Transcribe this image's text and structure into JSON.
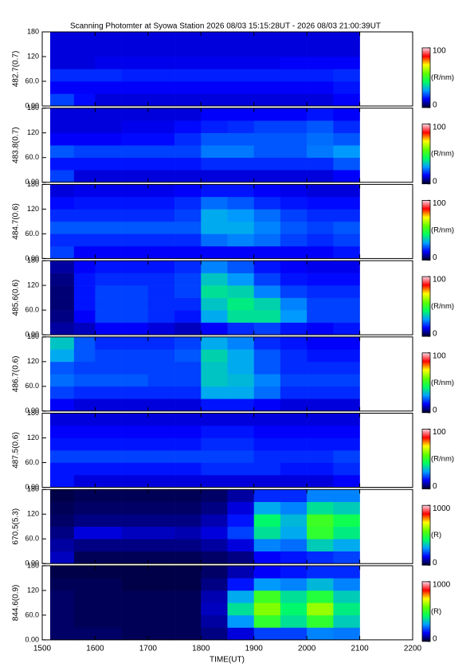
{
  "chart_data": {
    "type": "heatmap",
    "title": "Scanning Photomter at Syowa Station 2026 08/03 15:15:28UT - 2026 08/03 21:00:39UT",
    "xlabel": "TIME(UT)",
    "xlim": [
      1500,
      2200
    ],
    "xticks": [
      1500,
      1600,
      1700,
      1800,
      1900,
      2000,
      2100,
      2200
    ],
    "ylim": [
      0,
      180
    ],
    "yticks": [
      {
        "value": 0,
        "label": "0.00"
      },
      {
        "value": 60,
        "label": "60.0"
      },
      {
        "value": 120,
        "label": "120"
      },
      {
        "value": 180,
        "label": "180"
      }
    ],
    "x_bins": [
      1515,
      1560,
      1600,
      1650,
      1700,
      1750,
      1800,
      1850,
      1900,
      1950,
      2000,
      2050,
      2100
    ],
    "y_bins": [
      0,
      30,
      60,
      90,
      120,
      150,
      180
    ],
    "colormap": [
      "#00002a",
      "#0000ff",
      "#00a0ff",
      "#00ff60",
      "#60ff00",
      "#ffff00",
      "#ff0000",
      "#ffd8e8"
    ],
    "panels": [
      {
        "label": "482.7(0.7)",
        "unit": "(R/nm)",
        "clim": [
          0,
          100
        ],
        "cticks": [
          0,
          100
        ],
        "values": [
          [
            20,
            15,
            12,
            12,
            12,
            12,
            12,
            12,
            12,
            12,
            12,
            14
          ],
          [
            14,
            14,
            14,
            14,
            14,
            14,
            14,
            14,
            14,
            14,
            14,
            16
          ],
          [
            18,
            18,
            18,
            17,
            17,
            17,
            17,
            17,
            17,
            17,
            17,
            18
          ],
          [
            12,
            12,
            13,
            13,
            13,
            13,
            13,
            13,
            13,
            14,
            14,
            14
          ],
          [
            12,
            12,
            12,
            12,
            12,
            12,
            12,
            12,
            12,
            12,
            12,
            12
          ],
          [
            12,
            12,
            12,
            12,
            12,
            12,
            12,
            12,
            12,
            12,
            12,
            12
          ]
        ]
      },
      {
        "label": "483.8(0.7)",
        "unit": "(R/nm)",
        "clim": [
          0,
          100
        ],
        "cticks": [
          0,
          100
        ],
        "values": [
          [
            20,
            12,
            12,
            12,
            12,
            12,
            12,
            12,
            12,
            12,
            12,
            14
          ],
          [
            16,
            16,
            16,
            16,
            16,
            16,
            18,
            18,
            18,
            18,
            18,
            22
          ],
          [
            22,
            20,
            20,
            20,
            20,
            20,
            25,
            25,
            22,
            22,
            25,
            28
          ],
          [
            14,
            14,
            14,
            15,
            15,
            18,
            22,
            22,
            22,
            22,
            24,
            22
          ],
          [
            12,
            12,
            12,
            13,
            13,
            15,
            17,
            18,
            20,
            20,
            22,
            18
          ],
          [
            12,
            12,
            12,
            12,
            12,
            12,
            14,
            14,
            14,
            14,
            16,
            14
          ]
        ]
      },
      {
        "label": "484.7(0.6)",
        "unit": "(R/nm)",
        "clim": [
          0,
          100
        ],
        "cticks": [
          0,
          100
        ],
        "values": [
          [
            20,
            14,
            14,
            14,
            14,
            14,
            14,
            14,
            14,
            14,
            14,
            16
          ],
          [
            18,
            18,
            18,
            18,
            18,
            18,
            24,
            26,
            24,
            20,
            18,
            20
          ],
          [
            22,
            22,
            22,
            22,
            22,
            22,
            30,
            30,
            26,
            22,
            20,
            22
          ],
          [
            18,
            18,
            18,
            18,
            18,
            20,
            30,
            28,
            24,
            20,
            18,
            18
          ],
          [
            15,
            16,
            16,
            16,
            16,
            18,
            24,
            22,
            18,
            16,
            15,
            15
          ],
          [
            12,
            13,
            13,
            13,
            13,
            14,
            16,
            16,
            14,
            13,
            12,
            12
          ]
        ]
      },
      {
        "label": "485.6(0.6)",
        "unit": "(R/nm)",
        "clim": [
          0,
          100
        ],
        "cticks": [
          0,
          100
        ],
        "values": [
          [
            8,
            10,
            14,
            14,
            12,
            10,
            14,
            18,
            20,
            16,
            14,
            16
          ],
          [
            6,
            14,
            20,
            20,
            18,
            16,
            30,
            38,
            38,
            28,
            20,
            20
          ],
          [
            5,
            16,
            20,
            20,
            18,
            18,
            34,
            40,
            36,
            26,
            20,
            20
          ],
          [
            5,
            16,
            20,
            20,
            18,
            20,
            38,
            36,
            26,
            20,
            18,
            18
          ],
          [
            6,
            16,
            18,
            18,
            18,
            20,
            34,
            28,
            20,
            16,
            15,
            15
          ],
          [
            8,
            14,
            16,
            16,
            16,
            18,
            26,
            22,
            16,
            14,
            13,
            13
          ]
        ]
      },
      {
        "label": "486.7(0.6)",
        "unit": "(R/nm)",
        "clim": [
          0,
          100
        ],
        "cticks": [
          0,
          100
        ],
        "values": [
          [
            14,
            12,
            12,
            12,
            12,
            12,
            16,
            16,
            14,
            12,
            12,
            12
          ],
          [
            20,
            18,
            18,
            18,
            18,
            18,
            30,
            30,
            24,
            18,
            18,
            18
          ],
          [
            24,
            22,
            22,
            22,
            20,
            20,
            34,
            32,
            26,
            20,
            20,
            20
          ],
          [
            22,
            20,
            20,
            20,
            20,
            20,
            34,
            30,
            22,
            18,
            18,
            18
          ],
          [
            30,
            22,
            20,
            20,
            20,
            22,
            36,
            30,
            22,
            18,
            16,
            16
          ],
          [
            34,
            22,
            18,
            18,
            18,
            20,
            30,
            26,
            18,
            16,
            14,
            14
          ]
        ]
      },
      {
        "label": "487.5(0.6)",
        "unit": "(R/nm)",
        "clim": [
          0,
          100
        ],
        "cticks": [
          0,
          100
        ],
        "values": [
          [
            16,
            12,
            12,
            12,
            12,
            12,
            12,
            12,
            12,
            12,
            12,
            14
          ],
          [
            16,
            16,
            16,
            16,
            16,
            16,
            18,
            18,
            18,
            16,
            16,
            18
          ],
          [
            20,
            20,
            20,
            20,
            20,
            20,
            20,
            20,
            18,
            18,
            18,
            20
          ],
          [
            16,
            16,
            16,
            16,
            16,
            16,
            18,
            18,
            16,
            16,
            16,
            16
          ],
          [
            14,
            14,
            14,
            14,
            14,
            14,
            16,
            16,
            14,
            14,
            14,
            14
          ],
          [
            12,
            12,
            12,
            12,
            12,
            12,
            12,
            12,
            12,
            12,
            12,
            12
          ]
        ]
      },
      {
        "label": "670.5(5.3)",
        "unit": "(R)",
        "clim": [
          0,
          1000
        ],
        "cticks": [
          0,
          1000
        ],
        "values": [
          [
            100,
            30,
            30,
            30,
            30,
            30,
            40,
            60,
            140,
            160,
            180,
            200
          ],
          [
            80,
            60,
            60,
            60,
            60,
            60,
            80,
            120,
            260,
            240,
            350,
            300
          ],
          [
            60,
            120,
            120,
            100,
            100,
            90,
            120,
            200,
            380,
            300,
            500,
            400
          ],
          [
            40,
            60,
            60,
            60,
            60,
            60,
            90,
            160,
            420,
            320,
            520,
            450
          ],
          [
            30,
            40,
            40,
            40,
            40,
            40,
            60,
            120,
            300,
            260,
            380,
            350
          ],
          [
            20,
            30,
            30,
            30,
            30,
            30,
            40,
            80,
            180,
            180,
            260,
            260
          ]
        ]
      },
      {
        "label": "844.6(0.9)",
        "unit": "(R)",
        "clim": [
          0,
          1000
        ],
        "cticks": [
          0,
          1000
        ],
        "values": [
          [
            40,
            40,
            40,
            30,
            30,
            30,
            60,
            120,
            200,
            200,
            260,
            250
          ],
          [
            40,
            30,
            30,
            30,
            30,
            30,
            80,
            280,
            500,
            380,
            500,
            350
          ],
          [
            40,
            30,
            30,
            30,
            30,
            30,
            100,
            380,
            600,
            420,
            620,
            400
          ],
          [
            40,
            30,
            30,
            30,
            30,
            30,
            90,
            300,
            520,
            380,
            480,
            350
          ],
          [
            30,
            30,
            30,
            20,
            20,
            20,
            60,
            160,
            280,
            260,
            320,
            260
          ],
          [
            20,
            20,
            20,
            20,
            20,
            20,
            40,
            90,
            140,
            160,
            180,
            180
          ]
        ]
      }
    ]
  }
}
